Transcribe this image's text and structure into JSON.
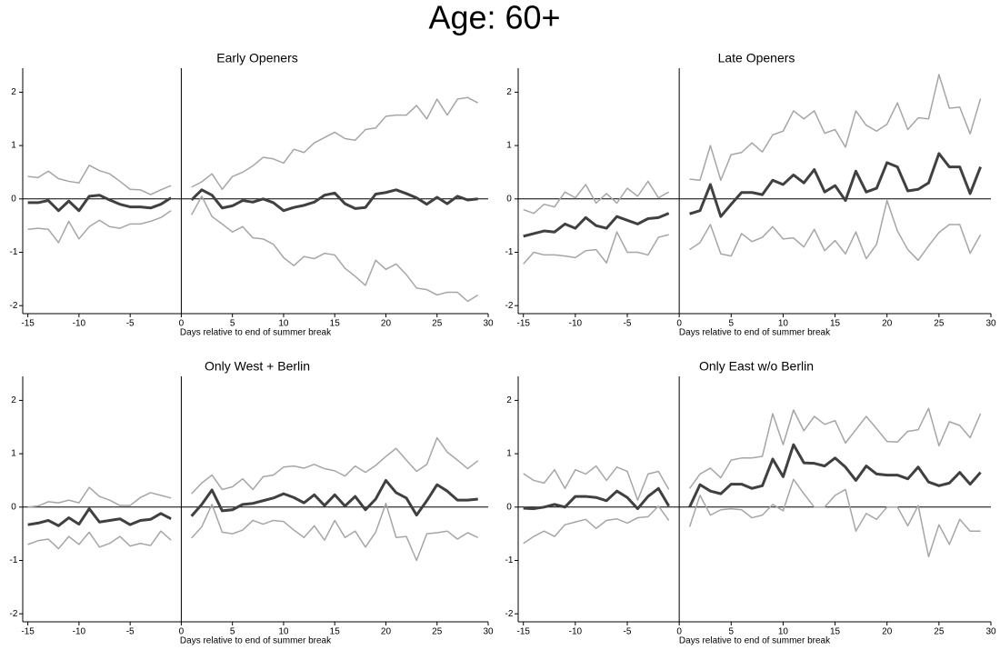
{
  "title": "Age: 60+",
  "chart_data": [
    {
      "type": "line",
      "title": "Early Openers",
      "xlabel": "Days relative to end of summer break",
      "x": [
        -15,
        -14,
        -13,
        -12,
        -11,
        -10,
        -9,
        -8,
        -7,
        -6,
        -5,
        -4,
        -3,
        -2,
        -1,
        0,
        1,
        2,
        3,
        4,
        5,
        6,
        7,
        8,
        9,
        10,
        11,
        12,
        13,
        14,
        15,
        16,
        17,
        18,
        19,
        20,
        21,
        22,
        23,
        24,
        25,
        26,
        27,
        28,
        29
      ],
      "xlim": [
        -15.5,
        30
      ],
      "xticks": [
        -15,
        -10,
        -5,
        0,
        5,
        10,
        15,
        20,
        25,
        30
      ],
      "ylim": [
        -2.15,
        2.45
      ],
      "yticks": [
        -2,
        -1,
        0,
        1,
        2
      ],
      "reference_lines": {
        "x": 0,
        "y": 0
      },
      "series": [
        {
          "color": "#a6a6a6",
          "width": 1.5,
          "values": [
            0.42,
            0.4,
            0.52,
            0.38,
            0.33,
            0.3,
            0.63,
            0.53,
            0.47,
            0.33,
            0.18,
            0.17,
            0.08,
            0.17,
            0.25,
            null,
            0.22,
            0.32,
            0.47,
            0.18,
            0.42,
            0.5,
            0.62,
            0.78,
            0.75,
            0.67,
            0.93,
            0.87,
            1.05,
            1.15,
            1.25,
            1.13,
            1.1,
            1.3,
            1.33,
            1.55,
            1.57,
            1.57,
            1.75,
            1.5,
            1.87,
            1.57,
            1.87,
            1.9,
            1.8
          ]
        },
        {
          "color": "#a6a6a6",
          "width": 1.5,
          "values": [
            -0.57,
            -0.55,
            -0.57,
            -0.82,
            -0.42,
            -0.75,
            -0.52,
            -0.4,
            -0.52,
            -0.55,
            -0.47,
            -0.47,
            -0.42,
            -0.35,
            -0.22,
            null,
            -0.3,
            0.05,
            -0.33,
            -0.47,
            -0.62,
            -0.52,
            -0.73,
            -0.75,
            -0.85,
            -1.1,
            -1.25,
            -1.08,
            -1.12,
            -1.02,
            -1.05,
            -1.3,
            -1.45,
            -1.62,
            -1.15,
            -1.32,
            -1.22,
            -1.42,
            -1.67,
            -1.7,
            -1.8,
            -1.75,
            -1.75,
            -1.92,
            -1.8
          ]
        },
        {
          "color": "#404040",
          "width": 3,
          "values": [
            -0.07,
            -0.07,
            -0.03,
            -0.22,
            -0.04,
            -0.22,
            0.05,
            0.07,
            -0.02,
            -0.1,
            -0.15,
            -0.15,
            -0.17,
            -0.1,
            0.02,
            null,
            -0.02,
            0.17,
            0.07,
            -0.17,
            -0.13,
            -0.03,
            -0.06,
            0.0,
            -0.07,
            -0.22,
            -0.16,
            -0.12,
            -0.06,
            0.07,
            0.11,
            -0.09,
            -0.18,
            -0.16,
            0.09,
            0.12,
            0.17,
            0.1,
            0.02,
            -0.1,
            0.03,
            -0.09,
            0.05,
            -0.02,
            0.0
          ]
        }
      ]
    },
    {
      "type": "line",
      "title": "Late Openers",
      "xlabel": "Days relative to end of summer break",
      "x": [
        -15,
        -14,
        -13,
        -12,
        -11,
        -10,
        -9,
        -8,
        -7,
        -6,
        -5,
        -4,
        -3,
        -2,
        -1,
        0,
        1,
        2,
        3,
        4,
        5,
        6,
        7,
        8,
        9,
        10,
        11,
        12,
        13,
        14,
        15,
        16,
        17,
        18,
        19,
        20,
        21,
        22,
        23,
        24,
        25,
        26,
        27,
        28,
        29
      ],
      "xlim": [
        -15.5,
        30
      ],
      "xticks": [
        -15,
        -10,
        -5,
        0,
        5,
        10,
        15,
        20,
        25,
        30
      ],
      "ylim": [
        -2.15,
        2.45
      ],
      "yticks": [
        -2,
        -1,
        0,
        1,
        2
      ],
      "reference_lines": {
        "x": 0,
        "y": 0
      },
      "series": [
        {
          "color": "#a6a6a6",
          "width": 1.5,
          "values": [
            -0.2,
            -0.27,
            -0.1,
            -0.15,
            0.13,
            0.02,
            0.27,
            -0.08,
            0.1,
            -0.08,
            0.2,
            0.05,
            0.33,
            0.02,
            0.13,
            null,
            0.37,
            0.35,
            1.0,
            0.35,
            0.83,
            0.87,
            1.05,
            0.88,
            1.2,
            1.27,
            1.65,
            1.5,
            1.65,
            1.23,
            1.3,
            0.97,
            1.65,
            1.38,
            1.27,
            1.4,
            1.8,
            1.3,
            1.52,
            1.5,
            2.33,
            1.7,
            1.72,
            1.22,
            1.88
          ]
        },
        {
          "color": "#a6a6a6",
          "width": 1.5,
          "values": [
            -1.22,
            -1.0,
            -1.05,
            -1.05,
            -1.07,
            -1.1,
            -0.97,
            -0.95,
            -1.2,
            -0.62,
            -1.0,
            -1.0,
            -1.05,
            -0.72,
            -0.67,
            null,
            -0.95,
            -0.82,
            -0.48,
            -1.03,
            -1.07,
            -0.65,
            -0.8,
            -0.72,
            -0.52,
            -0.75,
            -0.73,
            -0.9,
            -0.57,
            -0.97,
            -0.78,
            -1.03,
            -0.62,
            -1.12,
            -0.85,
            -0.03,
            -0.6,
            -0.95,
            -1.15,
            -0.88,
            -0.63,
            -0.48,
            -0.48,
            -1.02,
            -0.67
          ]
        },
        {
          "color": "#404040",
          "width": 3,
          "values": [
            -0.7,
            -0.65,
            -0.6,
            -0.62,
            -0.47,
            -0.55,
            -0.35,
            -0.5,
            -0.55,
            -0.33,
            -0.4,
            -0.47,
            -0.37,
            -0.35,
            -0.27,
            null,
            -0.28,
            -0.22,
            0.27,
            -0.33,
            -0.1,
            0.12,
            0.12,
            0.08,
            0.35,
            0.27,
            0.45,
            0.3,
            0.55,
            0.13,
            0.25,
            -0.03,
            0.52,
            0.13,
            0.2,
            0.68,
            0.6,
            0.15,
            0.18,
            0.3,
            0.85,
            0.6,
            0.6,
            0.1,
            0.6
          ]
        }
      ]
    },
    {
      "type": "line",
      "title": "Only West + Berlin",
      "xlabel": "Days relative to end of summer break",
      "x": [
        -15,
        -14,
        -13,
        -12,
        -11,
        -10,
        -9,
        -8,
        -7,
        -6,
        -5,
        -4,
        -3,
        -2,
        -1,
        0,
        1,
        2,
        3,
        4,
        5,
        6,
        7,
        8,
        9,
        10,
        11,
        12,
        13,
        14,
        15,
        16,
        17,
        18,
        19,
        20,
        21,
        22,
        23,
        24,
        25,
        26,
        27,
        28,
        29
      ],
      "xlim": [
        -15.5,
        30
      ],
      "xticks": [
        -15,
        -10,
        -5,
        0,
        5,
        10,
        15,
        20,
        25,
        30
      ],
      "ylim": [
        -2.15,
        2.45
      ],
      "yticks": [
        -2,
        -1,
        0,
        1,
        2
      ],
      "reference_lines": {
        "x": 0,
        "y": 0
      },
      "series": [
        {
          "color": "#a6a6a6",
          "width": 1.5,
          "values": [
            0.0,
            0.02,
            0.1,
            0.08,
            0.13,
            0.08,
            0.37,
            0.2,
            0.13,
            0.03,
            0.03,
            0.18,
            0.27,
            0.22,
            0.17,
            null,
            0.25,
            0.45,
            0.6,
            0.33,
            0.38,
            0.53,
            0.33,
            0.57,
            0.6,
            0.75,
            0.77,
            0.73,
            0.8,
            0.72,
            0.68,
            0.58,
            0.77,
            0.65,
            0.78,
            0.95,
            1.1,
            0.88,
            0.67,
            0.8,
            1.3,
            1.03,
            0.88,
            0.72,
            0.87
          ]
        },
        {
          "color": "#a6a6a6",
          "width": 1.5,
          "values": [
            -0.7,
            -0.63,
            -0.6,
            -0.78,
            -0.55,
            -0.7,
            -0.47,
            -0.75,
            -0.68,
            -0.55,
            -0.73,
            -0.68,
            -0.72,
            -0.45,
            -0.62,
            null,
            -0.58,
            -0.37,
            0.05,
            -0.47,
            -0.5,
            -0.43,
            -0.25,
            -0.32,
            -0.25,
            -0.27,
            -0.43,
            -0.57,
            -0.35,
            -0.62,
            -0.25,
            -0.57,
            -0.45,
            -0.75,
            -0.47,
            0.07,
            -0.57,
            -0.55,
            -1.0,
            -0.5,
            -0.48,
            -0.45,
            -0.6,
            -0.48,
            -0.57
          ]
        },
        {
          "color": "#404040",
          "width": 3,
          "values": [
            -0.33,
            -0.3,
            -0.25,
            -0.35,
            -0.2,
            -0.32,
            -0.03,
            -0.28,
            -0.25,
            -0.22,
            -0.33,
            -0.25,
            -0.23,
            -0.12,
            -0.22,
            null,
            -0.17,
            0.05,
            0.32,
            -0.07,
            -0.05,
            0.05,
            0.07,
            0.12,
            0.17,
            0.25,
            0.18,
            0.08,
            0.23,
            0.03,
            0.23,
            0.02,
            0.2,
            -0.05,
            0.15,
            0.5,
            0.27,
            0.17,
            -0.15,
            0.12,
            0.42,
            0.3,
            0.13,
            0.13,
            0.15
          ]
        }
      ]
    },
    {
      "type": "line",
      "title": "Only East w/o Berlin",
      "xlabel": "Days relative to end of summer break",
      "x": [
        -15,
        -14,
        -13,
        -12,
        -11,
        -10,
        -9,
        -8,
        -7,
        -6,
        -5,
        -4,
        -3,
        -2,
        -1,
        0,
        1,
        2,
        3,
        4,
        5,
        6,
        7,
        8,
        9,
        10,
        11,
        12,
        13,
        14,
        15,
        16,
        17,
        18,
        19,
        20,
        21,
        22,
        23,
        24,
        25,
        26,
        27,
        28,
        29
      ],
      "xlim": [
        -15.5,
        30
      ],
      "xticks": [
        -15,
        -10,
        -5,
        0,
        5,
        10,
        15,
        20,
        25,
        30
      ],
      "ylim": [
        -2.15,
        2.45
      ],
      "yticks": [
        -2,
        -1,
        0,
        1,
        2
      ],
      "reference_lines": {
        "x": 0,
        "y": 0
      },
      "series": [
        {
          "color": "#a6a6a6",
          "width": 1.5,
          "values": [
            0.63,
            0.5,
            0.45,
            0.7,
            0.35,
            0.7,
            0.62,
            0.77,
            0.5,
            0.75,
            0.67,
            0.13,
            0.62,
            0.67,
            0.33,
            null,
            0.35,
            0.62,
            0.73,
            0.55,
            0.88,
            0.92,
            0.92,
            0.95,
            1.75,
            1.17,
            1.82,
            1.43,
            1.7,
            1.55,
            1.62,
            1.2,
            1.45,
            1.7,
            1.47,
            1.23,
            1.22,
            1.42,
            1.45,
            1.85,
            1.15,
            1.6,
            1.53,
            1.3,
            1.75
          ]
        },
        {
          "color": "#a6a6a6",
          "width": 1.5,
          "values": [
            -0.68,
            -0.55,
            -0.45,
            -0.55,
            -0.33,
            -0.28,
            -0.23,
            -0.4,
            -0.25,
            -0.22,
            -0.3,
            -0.2,
            -0.18,
            0.02,
            -0.25,
            null,
            -0.37,
            0.22,
            -0.15,
            -0.05,
            -0.03,
            -0.05,
            -0.2,
            -0.15,
            0.05,
            -0.07,
            0.52,
            0.25,
            0.0,
            0.0,
            0.22,
            0.33,
            -0.45,
            -0.12,
            -0.23,
            0.0,
            0.0,
            -0.35,
            0.03,
            -0.93,
            -0.33,
            -0.7,
            -0.23,
            -0.45,
            -0.45
          ]
        },
        {
          "color": "#404040",
          "width": 3,
          "values": [
            -0.02,
            -0.03,
            0.0,
            0.05,
            0.0,
            0.2,
            0.2,
            0.18,
            0.12,
            0.3,
            0.18,
            -0.03,
            0.2,
            0.35,
            0.02,
            null,
            0.0,
            0.42,
            0.3,
            0.25,
            0.43,
            0.43,
            0.35,
            0.4,
            0.9,
            0.57,
            1.17,
            0.83,
            0.82,
            0.77,
            0.92,
            0.75,
            0.5,
            0.77,
            0.62,
            0.6,
            0.6,
            0.53,
            0.75,
            0.47,
            0.4,
            0.45,
            0.65,
            0.43,
            0.65
          ]
        }
      ]
    }
  ]
}
